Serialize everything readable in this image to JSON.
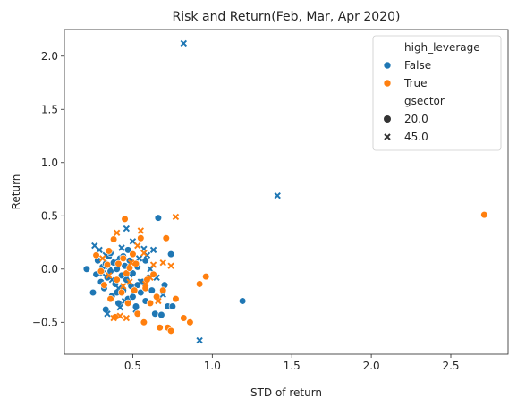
{
  "chart_data": {
    "type": "scatter",
    "title": "Risk and Return(Feb, Mar, Apr 2020)",
    "xlabel": "STD of return",
    "ylabel": "Return",
    "xlim": [
      0.07,
      2.86
    ],
    "ylim": [
      -0.8,
      2.25
    ],
    "xticks": [
      0.5,
      1.0,
      1.5,
      2.0,
      2.5
    ],
    "xtick_labels": [
      "0.5",
      "1.0",
      "1.5",
      "2.0",
      "2.5"
    ],
    "yticks": [
      -0.5,
      0.0,
      0.5,
      1.0,
      1.5,
      2.0
    ],
    "ytick_labels": [
      "−0.5",
      "0.0",
      "0.5",
      "1.0",
      "1.5",
      "2.0"
    ],
    "grid": false,
    "legend_position": "top-right",
    "legend": {
      "hue_title": "high_leverage",
      "hue_entries": [
        {
          "label": "False",
          "color": "#1f77b4"
        },
        {
          "label": "True",
          "color": "#ff7f0e"
        }
      ],
      "style_title": "gsector",
      "style_entries": [
        {
          "label": "20.0",
          "marker": "circle"
        },
        {
          "label": "45.0",
          "marker": "x"
        }
      ]
    },
    "series": [
      {
        "hue": "False",
        "style": "20.0",
        "points": [
          [
            0.21,
            0.0
          ],
          [
            0.25,
            -0.22
          ],
          [
            0.27,
            -0.05
          ],
          [
            0.28,
            0.08
          ],
          [
            0.3,
            -0.12
          ],
          [
            0.31,
            0.02
          ],
          [
            0.32,
            -0.18
          ],
          [
            0.33,
            0.05
          ],
          [
            0.34,
            -0.08
          ],
          [
            0.35,
            0.12
          ],
          [
            0.36,
            -0.02
          ],
          [
            0.37,
            -0.25
          ],
          [
            0.38,
            0.06
          ],
          [
            0.39,
            -0.14
          ],
          [
            0.4,
            0.0
          ],
          [
            0.41,
            -0.32
          ],
          [
            0.42,
            0.1
          ],
          [
            0.43,
            -0.06
          ],
          [
            0.44,
            -0.2
          ],
          [
            0.45,
            0.03
          ],
          [
            0.46,
            -0.1
          ],
          [
            0.47,
            -0.28
          ],
          [
            0.48,
            0.08
          ],
          [
            0.49,
            -0.16
          ],
          [
            0.5,
            -0.04
          ],
          [
            0.52,
            -0.35
          ],
          [
            0.53,
            0.02
          ],
          [
            0.55,
            -0.22
          ],
          [
            0.56,
            -0.12
          ],
          [
            0.58,
            -0.3
          ],
          [
            0.6,
            -0.08
          ],
          [
            0.62,
            -0.2
          ],
          [
            0.64,
            -0.42
          ],
          [
            0.66,
            0.48
          ],
          [
            0.68,
            -0.43
          ],
          [
            0.7,
            -0.15
          ],
          [
            0.72,
            -0.35
          ],
          [
            0.74,
            0.14
          ],
          [
            0.75,
            -0.35
          ],
          [
            1.19,
            -0.3
          ],
          [
            0.33,
            -0.38
          ],
          [
            0.36,
            0.15
          ],
          [
            0.4,
            -0.22
          ],
          [
            0.44,
            0.12
          ],
          [
            0.5,
            -0.26
          ],
          [
            0.58,
            0.08
          ],
          [
            0.47,
            0.18
          ],
          [
            0.53,
            -0.15
          ]
        ]
      },
      {
        "hue": "False",
        "style": "45.0",
        "points": [
          [
            0.26,
            0.22
          ],
          [
            0.29,
            0.18
          ],
          [
            0.31,
            -0.04
          ],
          [
            0.33,
            0.13
          ],
          [
            0.34,
            -0.42
          ],
          [
            0.37,
            -0.1
          ],
          [
            0.39,
            0.07
          ],
          [
            0.41,
            -0.18
          ],
          [
            0.43,
            0.2
          ],
          [
            0.45,
            -0.3
          ],
          [
            0.46,
            0.38
          ],
          [
            0.48,
            -0.05
          ],
          [
            0.5,
            0.26
          ],
          [
            0.52,
            -0.38
          ],
          [
            0.54,
            0.1
          ],
          [
            0.57,
            0.19
          ],
          [
            0.59,
            0.13
          ],
          [
            0.61,
            0.0
          ],
          [
            0.63,
            0.18
          ],
          [
            0.65,
            -0.08
          ],
          [
            0.69,
            -0.24
          ],
          [
            0.35,
            0.03
          ],
          [
            0.42,
            -0.36
          ],
          [
            0.55,
            -0.12
          ],
          [
            0.82,
            2.12
          ],
          [
            1.41,
            0.69
          ],
          [
            0.92,
            -0.67
          ]
        ]
      },
      {
        "hue": "True",
        "style": "20.0",
        "points": [
          [
            0.27,
            0.13
          ],
          [
            0.3,
            -0.02
          ],
          [
            0.32,
            -0.15
          ],
          [
            0.34,
            0.04
          ],
          [
            0.36,
            -0.28
          ],
          [
            0.38,
            0.28
          ],
          [
            0.4,
            -0.1
          ],
          [
            0.41,
            0.05
          ],
          [
            0.43,
            -0.22
          ],
          [
            0.45,
            0.47
          ],
          [
            0.46,
            -0.04
          ],
          [
            0.48,
            0.01
          ],
          [
            0.5,
            0.14
          ],
          [
            0.51,
            -0.2
          ],
          [
            0.53,
            -0.42
          ],
          [
            0.55,
            0.29
          ],
          [
            0.57,
            -0.5
          ],
          [
            0.59,
            -0.1
          ],
          [
            0.61,
            -0.32
          ],
          [
            0.63,
            -0.05
          ],
          [
            0.65,
            -0.26
          ],
          [
            0.67,
            -0.55
          ],
          [
            0.69,
            -0.2
          ],
          [
            0.71,
            0.29
          ],
          [
            0.72,
            -0.55
          ],
          [
            0.74,
            -0.58
          ],
          [
            0.77,
            -0.28
          ],
          [
            0.82,
            -0.46
          ],
          [
            0.86,
            -0.5
          ],
          [
            0.92,
            -0.14
          ],
          [
            0.96,
            -0.07
          ],
          [
            2.71,
            0.51
          ],
          [
            0.39,
            -0.45
          ],
          [
            0.44,
            0.1
          ],
          [
            0.47,
            -0.32
          ],
          [
            0.52,
            0.05
          ],
          [
            0.58,
            -0.18
          ],
          [
            0.35,
            0.17
          ]
        ]
      },
      {
        "hue": "True",
        "style": "45.0",
        "points": [
          [
            0.31,
            0.1
          ],
          [
            0.35,
            -0.06
          ],
          [
            0.38,
            -0.46
          ],
          [
            0.4,
            0.34
          ],
          [
            0.42,
            -0.44
          ],
          [
            0.44,
            -0.16
          ],
          [
            0.46,
            -0.46
          ],
          [
            0.49,
            0.06
          ],
          [
            0.53,
            0.22
          ],
          [
            0.55,
            0.36
          ],
          [
            0.58,
            -0.14
          ],
          [
            0.61,
            -0.08
          ],
          [
            0.63,
            0.04
          ],
          [
            0.66,
            -0.3
          ],
          [
            0.69,
            0.06
          ],
          [
            0.74,
            0.03
          ],
          [
            0.77,
            0.49
          ],
          [
            0.48,
            -0.12
          ],
          [
            0.57,
            0.15
          ]
        ]
      }
    ]
  }
}
